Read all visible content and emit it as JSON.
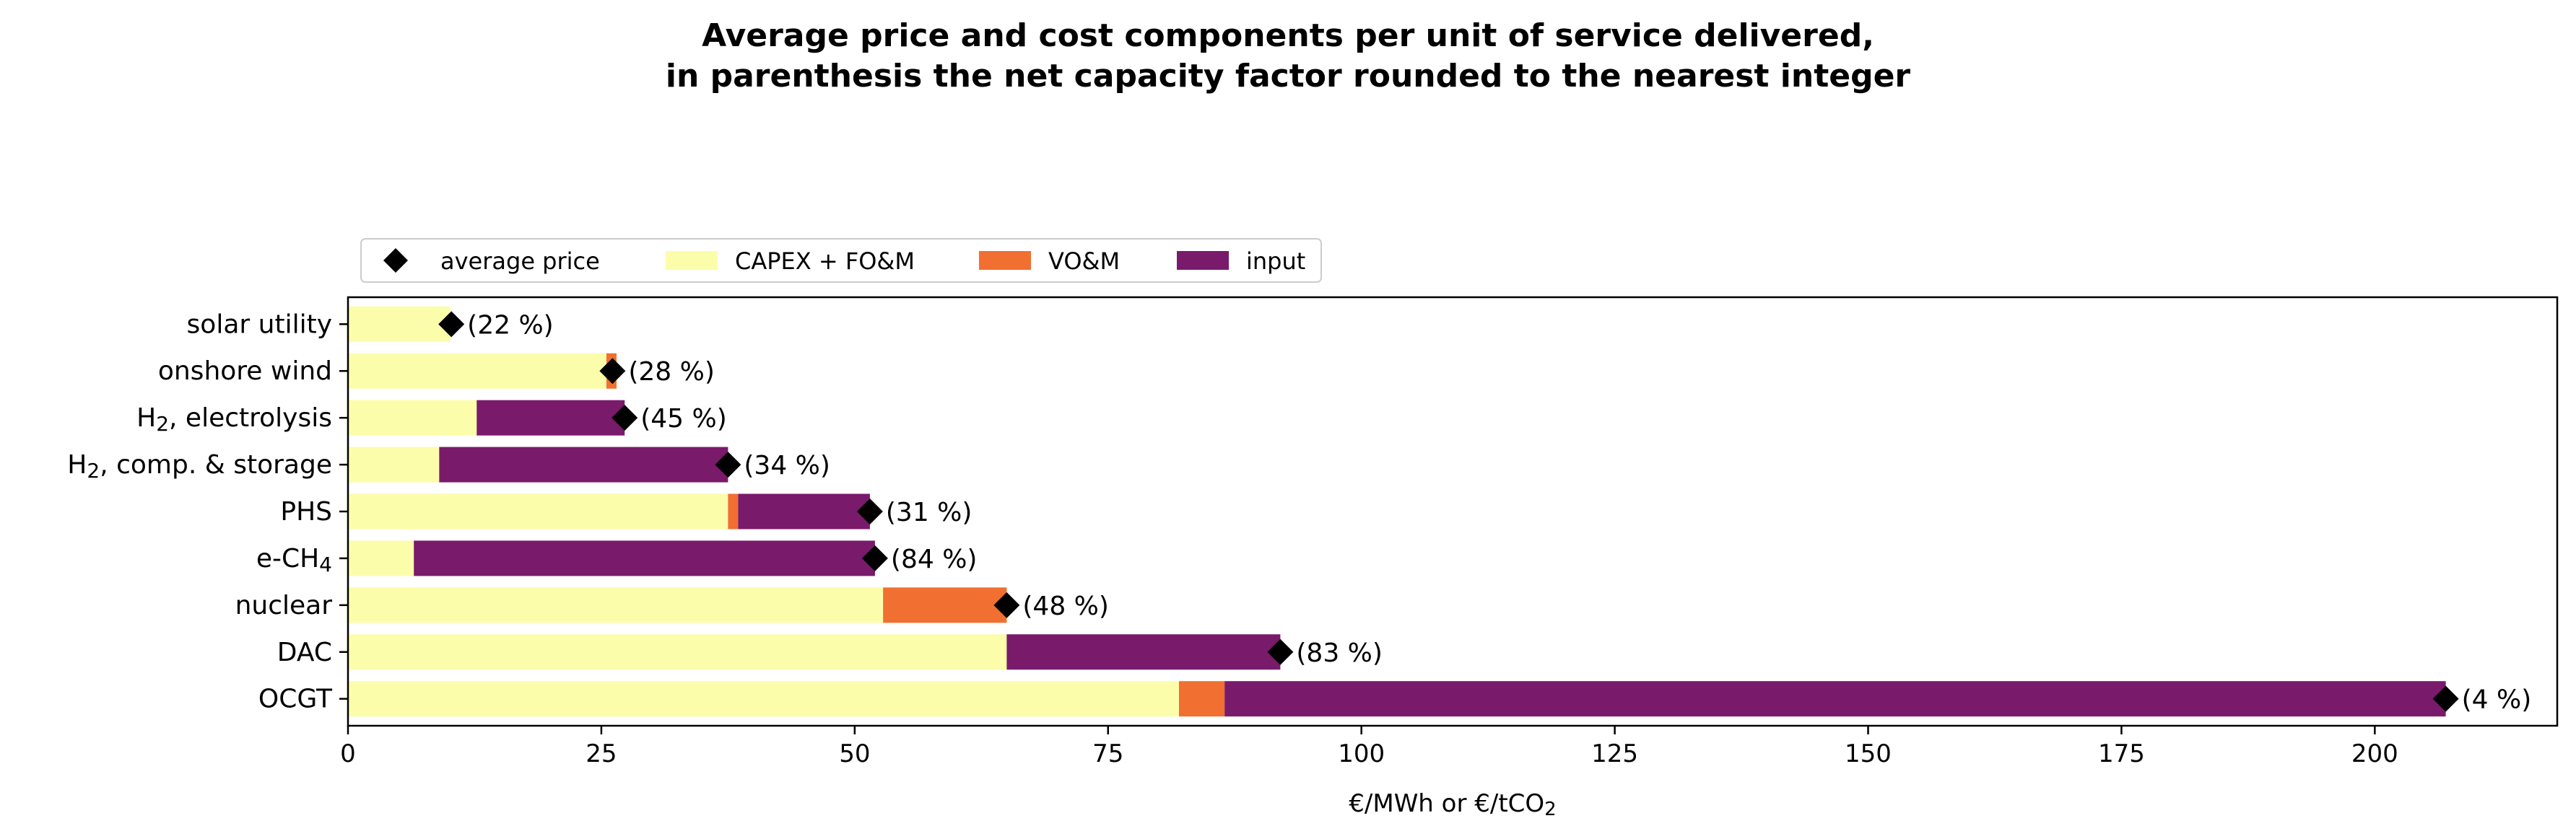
{
  "chart_data": {
    "type": "bar",
    "orientation": "horizontal",
    "stacked": true,
    "title_lines": [
      "Average price and cost components per unit of service delivered,",
      "in parenthesis the net capacity factor rounded to the nearest integer"
    ],
    "xlabel": "€/MWh or €/tCO₂",
    "ylabel": "",
    "xlim": [
      0,
      218
    ],
    "xticks": [
      0,
      25,
      50,
      75,
      100,
      125,
      150,
      175,
      200
    ],
    "grid": false,
    "legend_position": "top-left, above plot",
    "categories": [
      "solar utility",
      "onshore wind",
      "H₂, electrolysis",
      "H₂, comp. & storage",
      "PHS",
      "e-CH₄",
      "nuclear",
      "DAC",
      "OCGT"
    ],
    "series": [
      {
        "name": "CAPEX + FO&M",
        "color": "#fcfdaa",
        "values": [
          10.1,
          25.5,
          12.7,
          9.0,
          37.5,
          6.5,
          52.8,
          65.0,
          82.0
        ]
      },
      {
        "name": "VO&M",
        "color": "#f16f30",
        "values": [
          0,
          1.0,
          0,
          0,
          1.0,
          0,
          12.2,
          0,
          4.5
        ]
      },
      {
        "name": "input",
        "color": "#7a1a6b",
        "values": [
          0,
          0,
          14.6,
          28.5,
          13.0,
          45.5,
          0,
          27.0,
          120.5
        ]
      }
    ],
    "average_price": {
      "name": "average price",
      "color": "#000000",
      "values": [
        10.2,
        26.1,
        27.3,
        37.5,
        51.5,
        52.0,
        65.0,
        92.0,
        207.0
      ]
    },
    "annotations": [
      "(22 %)",
      "(28 %)",
      "(45 %)",
      "(34 %)",
      "(31 %)",
      "(84 %)",
      "(48 %)",
      "(83 %)",
      "(4 %)"
    ]
  }
}
